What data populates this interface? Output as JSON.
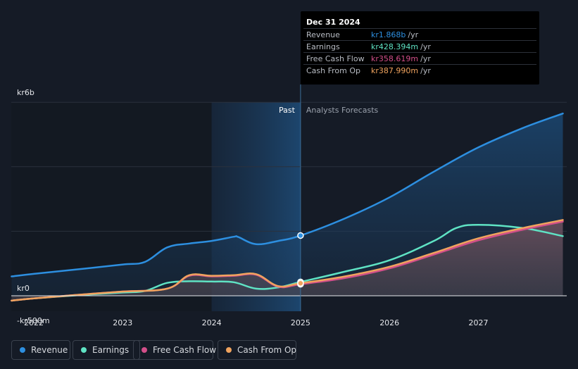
{
  "chart_data": {
    "type": "area",
    "title": "",
    "xlabel": "",
    "ylabel": "",
    "currency_prefix": "kr",
    "ylim": [
      -0.5,
      6.0
    ],
    "y_unit": "billions",
    "y_ticks": [
      {
        "value": 6,
        "label": "kr6b"
      },
      {
        "value": 0,
        "label": "kr0"
      },
      {
        "value": -0.5,
        "label": "-kr500m"
      }
    ],
    "xlim": [
      2021.75,
      2027.95
    ],
    "x_ticks": [
      {
        "value": 2022,
        "label": "2022"
      },
      {
        "value": 2023,
        "label": "2023"
      },
      {
        "value": 2024,
        "label": "2024"
      },
      {
        "value": 2025,
        "label": "2025"
      },
      {
        "value": 2026,
        "label": "2026"
      },
      {
        "value": 2027,
        "label": "2027"
      }
    ],
    "past_region": {
      "from": 2024.0,
      "to": 2025.0
    },
    "divider_x": 2025.0,
    "past_label": "Past",
    "forecast_label": "Analysts Forecasts",
    "series": [
      {
        "name": "Revenue",
        "color": "#2d8fe0",
        "fill": true,
        "points": [
          [
            2021.75,
            0.6
          ],
          [
            2022.0,
            0.68
          ],
          [
            2022.5,
            0.82
          ],
          [
            2023.0,
            0.97
          ],
          [
            2023.25,
            1.05
          ],
          [
            2023.5,
            1.5
          ],
          [
            2023.75,
            1.62
          ],
          [
            2024.0,
            1.7
          ],
          [
            2024.25,
            1.83
          ],
          [
            2024.3,
            1.82
          ],
          [
            2024.5,
            1.6
          ],
          [
            2024.75,
            1.7
          ],
          [
            2025.0,
            1.868
          ],
          [
            2025.5,
            2.4
          ],
          [
            2026.0,
            3.05
          ],
          [
            2026.5,
            3.85
          ],
          [
            2027.0,
            4.6
          ],
          [
            2027.5,
            5.2
          ],
          [
            2027.95,
            5.65
          ]
        ],
        "focus_point": [
          2025.0,
          1.868
        ]
      },
      {
        "name": "Earnings",
        "color": "#5fe3c4",
        "fill": false,
        "points": [
          [
            2021.75,
            -0.15
          ],
          [
            2022.0,
            -0.08
          ],
          [
            2022.5,
            0.02
          ],
          [
            2023.0,
            0.1
          ],
          [
            2023.25,
            0.15
          ],
          [
            2023.5,
            0.4
          ],
          [
            2023.75,
            0.45
          ],
          [
            2024.0,
            0.44
          ],
          [
            2024.25,
            0.42
          ],
          [
            2024.5,
            0.22
          ],
          [
            2024.75,
            0.26
          ],
          [
            2025.0,
            0.428
          ],
          [
            2025.5,
            0.75
          ],
          [
            2026.0,
            1.1
          ],
          [
            2026.5,
            1.7
          ],
          [
            2026.75,
            2.1
          ],
          [
            2027.0,
            2.2
          ],
          [
            2027.5,
            2.1
          ],
          [
            2027.95,
            1.85
          ]
        ],
        "focus_point": [
          2025.0,
          0.428
        ]
      },
      {
        "name": "Free Cash Flow",
        "color": "#d34f8a",
        "fill": true,
        "points": [
          [
            2021.75,
            -0.15
          ],
          [
            2022.0,
            -0.08
          ],
          [
            2022.5,
            0.03
          ],
          [
            2023.0,
            0.13
          ],
          [
            2023.5,
            0.22
          ],
          [
            2023.75,
            0.62
          ],
          [
            2024.0,
            0.6
          ],
          [
            2024.25,
            0.62
          ],
          [
            2024.5,
            0.65
          ],
          [
            2024.75,
            0.28
          ],
          [
            2025.0,
            0.358
          ],
          [
            2025.5,
            0.55
          ],
          [
            2026.0,
            0.85
          ],
          [
            2026.5,
            1.28
          ],
          [
            2027.0,
            1.72
          ],
          [
            2027.5,
            2.05
          ],
          [
            2027.95,
            2.3
          ]
        ],
        "focus_point": [
          2025.0,
          0.358
        ]
      },
      {
        "name": "Cash From Op",
        "color": "#f0a35e",
        "fill": false,
        "points": [
          [
            2021.75,
            -0.15
          ],
          [
            2022.0,
            -0.08
          ],
          [
            2022.5,
            0.03
          ],
          [
            2023.0,
            0.13
          ],
          [
            2023.5,
            0.22
          ],
          [
            2023.75,
            0.64
          ],
          [
            2024.0,
            0.62
          ],
          [
            2024.25,
            0.64
          ],
          [
            2024.5,
            0.67
          ],
          [
            2024.75,
            0.3
          ],
          [
            2025.0,
            0.388
          ],
          [
            2025.5,
            0.6
          ],
          [
            2026.0,
            0.9
          ],
          [
            2026.5,
            1.33
          ],
          [
            2027.0,
            1.78
          ],
          [
            2027.5,
            2.1
          ],
          [
            2027.95,
            2.35
          ]
        ],
        "focus_point": [
          2025.0,
          0.388
        ]
      }
    ]
  },
  "tooltip": {
    "date": "Dec 31 2024",
    "rows": [
      {
        "label": "Revenue",
        "value": "kr1.868b",
        "unit": "/yr",
        "color": "#2d8fe0"
      },
      {
        "label": "Earnings",
        "value": "kr428.394m",
        "unit": "/yr",
        "color": "#5fe3c4"
      },
      {
        "label": "Free Cash Flow",
        "value": "kr358.619m",
        "unit": "/yr",
        "color": "#d34f8a"
      },
      {
        "label": "Cash From Op",
        "value": "kr387.990m",
        "unit": "/yr",
        "color": "#f0a35e"
      }
    ]
  },
  "legend": [
    {
      "label": "Revenue",
      "color": "#2d8fe0"
    },
    {
      "label": "Earnings",
      "color": "#5fe3c4"
    },
    {
      "label": "Free Cash Flow",
      "color": "#d34f8a"
    },
    {
      "label": "Cash From Op",
      "color": "#f0a35e"
    }
  ]
}
